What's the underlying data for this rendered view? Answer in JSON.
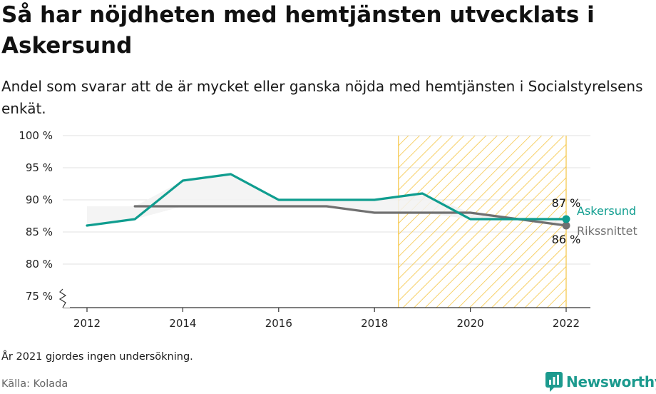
{
  "header": {
    "title": "Så har nöjdheten med hemtjänsten utvecklats i Askersund",
    "subtitle": "Andel som svarar att de är mycket eller ganska nöjda med hemtjänsten i Socialstyrelsens enkät."
  },
  "chart_data": {
    "type": "line",
    "x": [
      2012,
      2013,
      2014,
      2015,
      2016,
      2017,
      2018,
      2019,
      2020,
      2021,
      2022
    ],
    "series": [
      {
        "name": "Askersund",
        "color": "#0f9d8f",
        "values": [
          86,
          87,
          93,
          94,
          90,
          90,
          90,
          91,
          87,
          87,
          87
        ]
      },
      {
        "name": "Rikssnittet",
        "color": "#707070",
        "values": [
          null,
          89,
          89,
          89,
          89,
          89,
          88,
          88,
          88,
          87,
          86
        ]
      }
    ],
    "ylim": [
      75,
      100
    ],
    "yticks": [
      75,
      80,
      85,
      90,
      95,
      100
    ],
    "ytick_labels": [
      "75 %",
      "80 %",
      "85 %",
      "90 %",
      "95 %",
      "100 %"
    ],
    "xticks": [
      2012,
      2014,
      2016,
      2018,
      2020,
      2022
    ],
    "xtick_labels": [
      "2012",
      "2014",
      "2016",
      "2018",
      "2020",
      "2022"
    ],
    "highlight_range": [
      2018.5,
      2022
    ],
    "highlight_color": "#f5c542",
    "end_labels": {
      "askersund": "87 %",
      "rikssnittet": "86 %"
    },
    "axis_break": true,
    "grid": true
  },
  "footer": {
    "note": "År 2021 gjordes ingen undersökning.",
    "source": "Källa: Kolada",
    "brand": "Newsworthy"
  }
}
